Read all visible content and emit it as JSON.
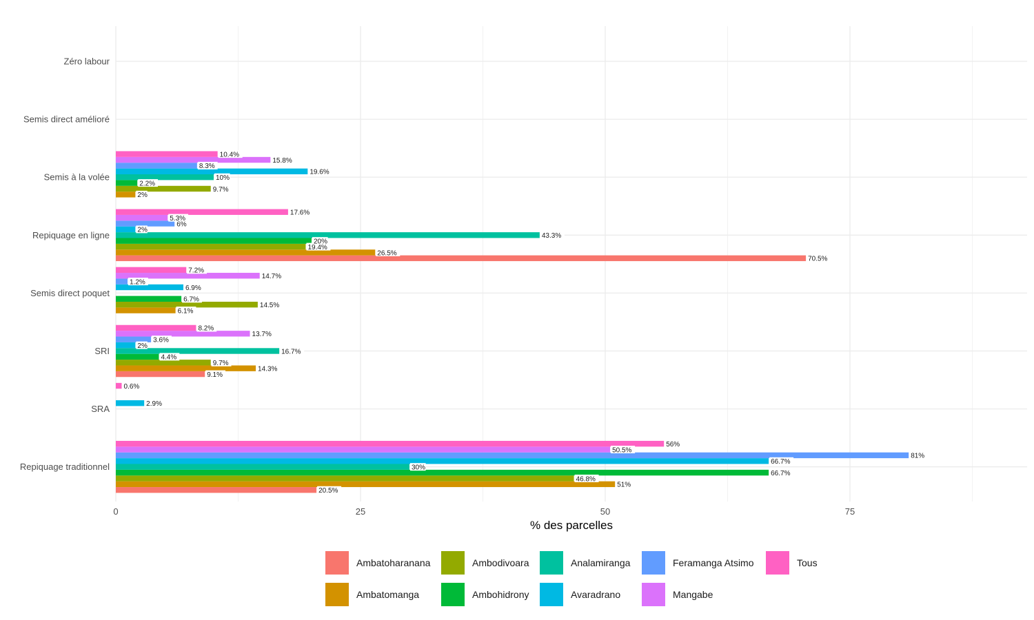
{
  "chart_data": {
    "type": "bar",
    "orientation": "horizontal",
    "title": "",
    "xlabel": "% des parcelles",
    "ylabel": "",
    "xlim": [
      0,
      93
    ],
    "x_ticks": [
      0,
      25,
      50,
      75
    ],
    "x_tick_labels": [
      "0",
      "25",
      "50",
      "75"
    ],
    "grid": true,
    "legend_position": "bottom",
    "categories": [
      "Zéro labour",
      "Semis direct amélioré",
      "Semis à la volée",
      "Repiquage en ligne",
      "Semis direct poquet",
      "SRI",
      "SRA",
      "Repiquage traditionnel"
    ],
    "series": [
      {
        "name": "Ambatoharanana",
        "color": "#F8766D",
        "values": [
          null,
          null,
          null,
          70.5,
          null,
          9.1,
          null,
          20.5
        ],
        "labels": [
          null,
          null,
          null,
          "70.5%",
          null,
          "9.1%",
          null,
          "20.5%"
        ]
      },
      {
        "name": "Ambatomanga",
        "color": "#D39200",
        "values": [
          null,
          null,
          2,
          26.5,
          6.1,
          14.3,
          null,
          51
        ],
        "labels": [
          null,
          null,
          "2%",
          "26.5%",
          "6.1%",
          "14.3%",
          null,
          "51%"
        ]
      },
      {
        "name": "Ambodivoara",
        "color": "#93AA00",
        "values": [
          null,
          null,
          9.7,
          19.4,
          14.5,
          9.7,
          null,
          46.8
        ],
        "labels": [
          null,
          null,
          "9.7%",
          "19.4%",
          "14.5%",
          "9.7%",
          null,
          "46.8%"
        ]
      },
      {
        "name": "Ambohidrony",
        "color": "#00BA38",
        "values": [
          null,
          null,
          2.2,
          20,
          6.7,
          4.4,
          null,
          66.7
        ],
        "labels": [
          null,
          null,
          "2.2%",
          "20%",
          "6.7%",
          "4.4%",
          null,
          "66.7%"
        ]
      },
      {
        "name": "Analamiranga",
        "color": "#00C19F",
        "values": [
          null,
          null,
          10,
          43.3,
          null,
          16.7,
          null,
          30
        ],
        "labels": [
          null,
          null,
          "10%",
          "43.3%",
          null,
          "16.7%",
          null,
          "30%"
        ]
      },
      {
        "name": "Avaradrano",
        "color": "#00B9E3",
        "values": [
          null,
          null,
          19.6,
          2,
          6.9,
          2,
          2.9,
          66.7
        ],
        "labels": [
          null,
          null,
          "19.6%",
          "2%",
          "6.9%",
          "2%",
          "2.9%",
          "66.7%"
        ]
      },
      {
        "name": "Feramanga Atsimo",
        "color": "#619CFF",
        "values": [
          null,
          null,
          8.3,
          6,
          1.2,
          3.6,
          null,
          81
        ],
        "labels": [
          null,
          null,
          "8.3%",
          "6%",
          "1.2%",
          "3.6%",
          null,
          "81%"
        ]
      },
      {
        "name": "Mangabe",
        "color": "#DB72FB",
        "values": [
          null,
          null,
          15.8,
          5.3,
          14.7,
          13.7,
          null,
          50.5
        ],
        "labels": [
          null,
          null,
          "15.8%",
          "5.3%",
          "14.7%",
          "13.7%",
          null,
          "50.5%"
        ]
      },
      {
        "name": "Tous",
        "color": "#FF61C3",
        "values": [
          null,
          null,
          10.4,
          17.6,
          7.2,
          8.2,
          0.6,
          56
        ],
        "labels": [
          null,
          null,
          "10.4%",
          "17.6%",
          "7.2%",
          "8.2%",
          "0.6%",
          "56%"
        ]
      }
    ]
  },
  "legend": {
    "items": [
      {
        "label": "Ambatoharanana",
        "color": "#F8766D"
      },
      {
        "label": "Ambodivoara",
        "color": "#93AA00"
      },
      {
        "label": "Analamiranga",
        "color": "#00C19F"
      },
      {
        "label": "Feramanga Atsimo",
        "color": "#619CFF"
      },
      {
        "label": "Tous",
        "color": "#FF61C3"
      },
      {
        "label": "Ambatomanga",
        "color": "#D39200"
      },
      {
        "label": "Ambohidrony",
        "color": "#00BA38"
      },
      {
        "label": "Avaradrano",
        "color": "#00B9E3"
      },
      {
        "label": "Mangabe",
        "color": "#DB72FB"
      }
    ]
  }
}
